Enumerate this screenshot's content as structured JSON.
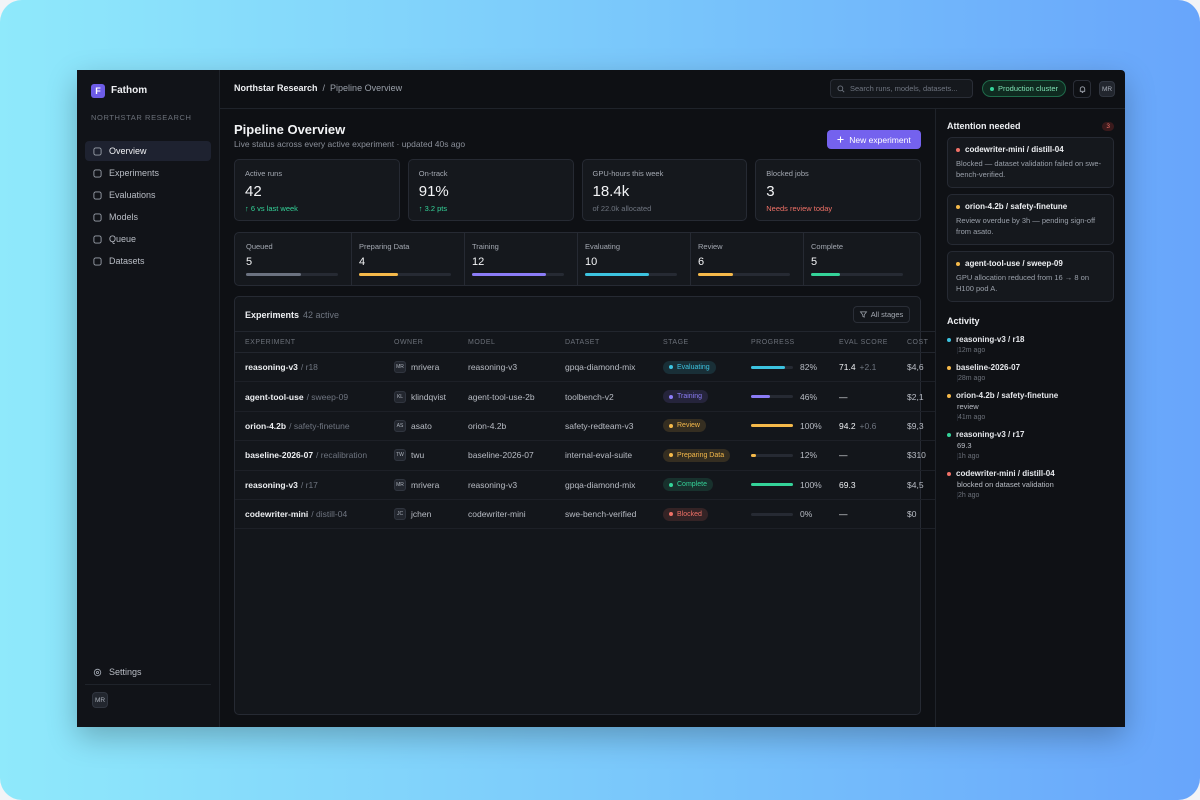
{
  "sidebar": {
    "logo": "F",
    "brand": "Fathom",
    "org": "NORTHSTAR RESEARCH",
    "nav": [
      {
        "label": "Overview",
        "active": true
      },
      {
        "label": "Experiments",
        "active": false
      },
      {
        "label": "Evaluations",
        "active": false
      },
      {
        "label": "Models",
        "active": false
      },
      {
        "label": "Queue",
        "active": false
      },
      {
        "label": "Datasets",
        "active": false
      }
    ],
    "settings": "Settings",
    "avatar": "MR"
  },
  "topbar": {
    "breadcrumb": [
      "Northstar Research",
      "/",
      "Pipeline Overview"
    ],
    "search_placeholder": "Search runs, models, datasets...",
    "cluster": "Production cluster",
    "avatar": "MR"
  },
  "header": {
    "title": "Pipeline Overview",
    "subtitle": "Live status across every active experiment · updated 40s ago",
    "button": "New experiment"
  },
  "stats": [
    {
      "label": "Active runs",
      "value": "42",
      "note": "↑ 6 vs last week",
      "note_color": "#34d399"
    },
    {
      "label": "On-track",
      "value": "91%",
      "note": "↑ 3.2 pts",
      "note_color": "#34d399"
    },
    {
      "label": "GPU-hours this week",
      "value": "18.4k",
      "note": "of 22.0k allocated",
      "note_color": "#6f7580"
    },
    {
      "label": "Blocked jobs",
      "value": "3",
      "note": "Needs review today",
      "note_color": "#f07167"
    }
  ],
  "stages": [
    {
      "name": "Queued",
      "count": 5,
      "bar": 60,
      "color": "#6b7280"
    },
    {
      "name": "Preparing Data",
      "count": 4,
      "bar": 42,
      "color": "#f5b94a"
    },
    {
      "name": "Training",
      "count": 12,
      "bar": 80,
      "color": "#8b7cf6"
    },
    {
      "name": "Evaluating",
      "count": 10,
      "bar": 70,
      "color": "#3cc3e0"
    },
    {
      "name": "Review",
      "count": 6,
      "bar": 38,
      "color": "#f5b94a"
    },
    {
      "name": "Complete",
      "count": 5,
      "bar": 32,
      "color": "#34d399"
    }
  ],
  "table": {
    "title": "Experiments",
    "subtitle": "42 active",
    "filter": "All stages",
    "columns": [
      "EXPERIMENT",
      "OWNER",
      "MODEL",
      "DATASET",
      "STAGE",
      "PROGRESS",
      "EVAL SCORE",
      "COST"
    ],
    "rows": [
      {
        "name": "reasoning-v3",
        "run": "/ r18",
        "initials": "MR",
        "owner": "mrivera",
        "model": "reasoning-v3",
        "dataset": "gpqa-diamond-mix",
        "stage": "Evaluating",
        "stage_color": "#3cc3e0",
        "progress": {
          "value": 82,
          "label": "82%"
        },
        "score": "71.4",
        "delta": "+2.1",
        "cost": "$4,6"
      },
      {
        "name": "agent-tool-use",
        "run": "/ sweep-09",
        "initials": "KL",
        "owner": "klindqvist",
        "model": "agent-tool-use-2b",
        "dataset": "toolbench-v2",
        "stage": "Training",
        "stage_color": "#8b7cf6",
        "progress": {
          "value": 46,
          "label": "46%"
        },
        "score": "—",
        "cost": "$2,1"
      },
      {
        "name": "orion-4.2b",
        "run": "/ safety-finetune",
        "initials": "AS",
        "owner": "asato",
        "model": "orion-4.2b",
        "dataset": "safety-redteam-v3",
        "stage": "Review",
        "stage_color": "#f5b94a",
        "progress": {
          "value": 100,
          "label": "100%"
        },
        "score": "94.2",
        "delta": "+0.6",
        "cost": "$9,3"
      },
      {
        "name": "baseline-2026-07",
        "run": "/ recalibration",
        "initials": "TW",
        "owner": "twu",
        "model": "baseline-2026-07",
        "dataset": "internal-eval-suite",
        "stage": "Preparing Data",
        "stage_color": "#f5b94a",
        "progress": {
          "value": 12,
          "label": "12%"
        },
        "score": "—",
        "cost": "$310"
      },
      {
        "name": "reasoning-v3",
        "run": "/ r17",
        "initials": "MR",
        "owner": "mrivera",
        "model": "reasoning-v3",
        "dataset": "gpqa-diamond-mix",
        "stage": "Complete",
        "stage_color": "#34d399",
        "progress": {
          "value": 100,
          "label": "100%"
        },
        "score": "69.3",
        "cost": "$4,5"
      },
      {
        "name": "codewriter-mini",
        "run": "/ distill-04",
        "initials": "JC",
        "owner": "jchen",
        "model": "codewriter-mini",
        "dataset": "swe-bench-verified",
        "stage": "Blocked",
        "stage_color": "#f07167",
        "progress": {
          "value": 0,
          "label": "0%"
        },
        "score": "—",
        "cost": "$0"
      }
    ]
  },
  "attention": {
    "title": "Attention needed",
    "count": "3",
    "items": [
      {
        "title": "codewriter-mini / distill-04",
        "detail": "Blocked — dataset validation failed on swe-bench-verified.",
        "color": "#f07167"
      },
      {
        "title": "orion-4.2b / safety-finetune",
        "detail": "Review overdue by 3h — pending sign-off from asato.",
        "color": "#f5b94a"
      },
      {
        "title": "agent-tool-use / sweep-09",
        "detail": "GPU allocation reduced from 16 → 8 on H100 pod A.",
        "color": "#f5b94a"
      }
    ]
  },
  "activity": {
    "title": "Activity",
    "items": [
      {
        "title": "reasoning-v3 / r18",
        "time": "12m ago",
        "color": "#3cc3e0"
      },
      {
        "title": "baseline-2026-07",
        "time": "28m ago",
        "color": "#f5b94a"
      },
      {
        "title": "orion-4.2b / safety-finetune",
        "detail": "review",
        "time": "41m ago",
        "color": "#f5b94a"
      },
      {
        "title": "reasoning-v3 / r17",
        "detail": "69.3",
        "time": "1h ago",
        "color": "#34d399"
      },
      {
        "title": "codewriter-mini / distill-04",
        "detail": "blocked on dataset validation",
        "time": "2h ago",
        "color": "#f07167"
      }
    ]
  }
}
